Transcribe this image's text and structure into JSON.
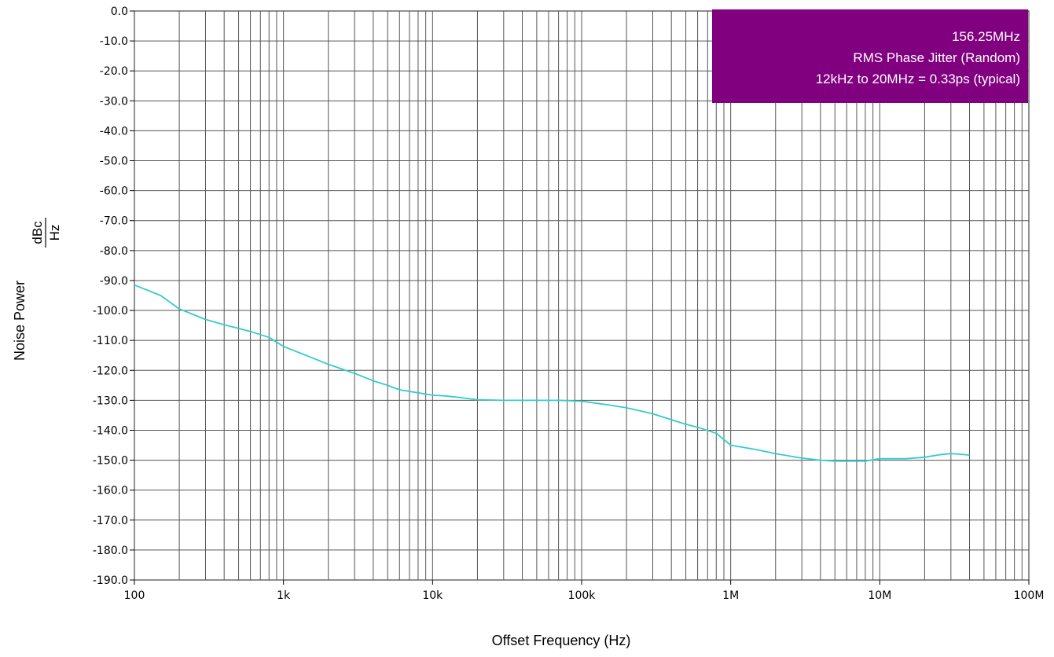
{
  "chart_data": {
    "type": "line",
    "xlabel": "Offset Frequency (Hz)",
    "ylabel": "Noise Power",
    "ylabel_unit": {
      "numerator": "dBc",
      "denominator": "Hz"
    },
    "xscale": "log",
    "xlim": [
      100,
      100000000
    ],
    "ylim": [
      -190,
      0
    ],
    "grid": true,
    "x_ticks": [
      {
        "value": 100,
        "label": "100"
      },
      {
        "value": 1000,
        "label": "1k"
      },
      {
        "value": 10000,
        "label": "10k"
      },
      {
        "value": 100000,
        "label": "100k"
      },
      {
        "value": 1000000,
        "label": "1M"
      },
      {
        "value": 10000000,
        "label": "10M"
      },
      {
        "value": 100000000,
        "label": "100M"
      }
    ],
    "y_ticks": [
      {
        "value": 0,
        "label": "0.0"
      },
      {
        "value": -10,
        "label": "-10.0"
      },
      {
        "value": -20,
        "label": "-20.0"
      },
      {
        "value": -30,
        "label": "-30.0"
      },
      {
        "value": -40,
        "label": "-40.0"
      },
      {
        "value": -50,
        "label": "-50.0"
      },
      {
        "value": -60,
        "label": "-60.0"
      },
      {
        "value": -70,
        "label": "-70.0"
      },
      {
        "value": -80,
        "label": "-80.0"
      },
      {
        "value": -90,
        "label": "-90.0"
      },
      {
        "value": -100,
        "label": "-100.0"
      },
      {
        "value": -110,
        "label": "-110.0"
      },
      {
        "value": -120,
        "label": "-120.0"
      },
      {
        "value": -130,
        "label": "-130.0"
      },
      {
        "value": -140,
        "label": "-140.0"
      },
      {
        "value": -150,
        "label": "-150.0"
      },
      {
        "value": -160,
        "label": "-160.0"
      },
      {
        "value": -170,
        "label": "-170.0"
      },
      {
        "value": -180,
        "label": "-180.0"
      },
      {
        "value": -190,
        "label": "-190.0"
      }
    ],
    "series": [
      {
        "color": "#33cccc",
        "x": [
          100,
          150,
          200,
          300,
          400,
          500,
          600,
          800,
          1000,
          1500,
          2000,
          3000,
          4000,
          5000,
          6000,
          8000,
          10000,
          12000,
          15000,
          20000,
          30000,
          50000,
          70000,
          100000,
          150000,
          200000,
          300000,
          400000,
          500000,
          600000,
          800000,
          1000000,
          1500000,
          2000000,
          3000000,
          4000000,
          5000000,
          6000000,
          8000000,
          10000000,
          15000000,
          20000000,
          25000000,
          30000000,
          35000000,
          40000000
        ],
        "y": [
          -91.5,
          -95,
          -99.5,
          -103,
          -104.8,
          -106,
          -107,
          -109,
          -112,
          -115.5,
          -118,
          -121,
          -123.5,
          -125,
          -126.5,
          -127.5,
          -128.3,
          -128.5,
          -129,
          -129.8,
          -130,
          -130,
          -130,
          -130.3,
          -131.5,
          -132.5,
          -134.5,
          -136.5,
          -138,
          -139,
          -141,
          -145,
          -146.5,
          -147.8,
          -149.3,
          -150,
          -150.3,
          -150.3,
          -150.3,
          -149.5,
          -149.5,
          -149,
          -148.2,
          -147.8,
          -148,
          -148.3
        ]
      }
    ]
  },
  "annotation": {
    "lines": [
      "156.25MHz",
      "RMS Phase Jitter (Random)",
      "12kHz to 20MHz = 0.33ps (typical)"
    ],
    "background": "#800080",
    "text_color": "#ffffff",
    "placement": "top-right"
  }
}
